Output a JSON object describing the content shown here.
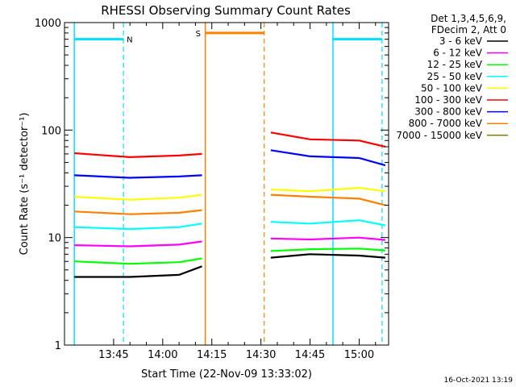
{
  "chart_data": {
    "type": "line",
    "title": "RHESSI Observing Summary Count Rates",
    "xlabel": "Start Time (22-Nov-09 13:33:02)",
    "ylabel": "Count Rate (s⁻¹ detector⁻¹)",
    "yscale": "log",
    "ylim": [
      1,
      1000
    ],
    "xlim_minutes": [
      13.5,
      15.15
    ],
    "x_ticks": [
      "13:45",
      "14:00",
      "14:15",
      "14:30",
      "14:45",
      "15:00"
    ],
    "y_ticks": [
      "1",
      "10",
      "100",
      "1000"
    ],
    "legend_header": [
      "Det 1,3,4,5,6,9,",
      "FDecim 2, Att 0"
    ],
    "legend_placement": "right",
    "timestamp": "16-Oct-2021 13:19",
    "series": [
      {
        "name": "3 - 6 keV",
        "color": "#000000",
        "seg1": {
          "x": [
            "13:33",
            "13:50",
            "14:05",
            "14:12"
          ],
          "y": [
            4.3,
            4.3,
            4.5,
            5.4
          ]
        },
        "seg2": {
          "x": [
            "14:33",
            "14:45",
            "15:00",
            "15:08"
          ],
          "y": [
            6.5,
            7.0,
            6.8,
            6.5
          ]
        }
      },
      {
        "name": "6 - 12 keV",
        "color": "#ff00ff",
        "seg1": {
          "x": [
            "13:33",
            "13:50",
            "14:05",
            "14:12"
          ],
          "y": [
            8.5,
            8.3,
            8.6,
            9.2
          ]
        },
        "seg2": {
          "x": [
            "14:33",
            "14:45",
            "15:00",
            "15:08"
          ],
          "y": [
            9.8,
            9.6,
            10.0,
            9.5
          ]
        }
      },
      {
        "name": "12 - 25 keV",
        "color": "#00ff00",
        "seg1": {
          "x": [
            "13:33",
            "13:50",
            "14:05",
            "14:12"
          ],
          "y": [
            6.0,
            5.7,
            5.9,
            6.4
          ]
        },
        "seg2": {
          "x": [
            "14:33",
            "14:45",
            "15:00",
            "15:08"
          ],
          "y": [
            7.5,
            7.8,
            7.9,
            7.6
          ]
        }
      },
      {
        "name": "25 - 50 keV",
        "color": "#00ffff",
        "seg1": {
          "x": [
            "13:33",
            "13:50",
            "14:05",
            "14:12"
          ],
          "y": [
            12.5,
            12.0,
            12.5,
            13.5
          ]
        },
        "seg2": {
          "x": [
            "14:33",
            "14:45",
            "15:00",
            "15:08"
          ],
          "y": [
            14.0,
            13.5,
            14.5,
            13.0
          ]
        }
      },
      {
        "name": "50 - 100 keV",
        "color": "#ffff00",
        "seg1": {
          "x": [
            "13:33",
            "13:50",
            "14:05",
            "14:12"
          ],
          "y": [
            24.0,
            22.5,
            23.5,
            25.0
          ]
        },
        "seg2": {
          "x": [
            "14:33",
            "14:45",
            "15:00",
            "15:08"
          ],
          "y": [
            28.0,
            27.0,
            29.0,
            27.0
          ]
        }
      },
      {
        "name": "100 - 300 keV",
        "color": "#ff0000",
        "seg1": {
          "x": [
            "13:33",
            "13:50",
            "14:05",
            "14:12"
          ],
          "y": [
            61.0,
            56.0,
            58.0,
            60.0
          ]
        },
        "seg2": {
          "x": [
            "14:33",
            "14:45",
            "15:00",
            "15:08"
          ],
          "y": [
            95.0,
            82.0,
            80.0,
            70.0
          ]
        }
      },
      {
        "name": "300 - 800 keV",
        "color": "#0000ff",
        "seg1": {
          "x": [
            "13:33",
            "13:50",
            "14:05",
            "14:12"
          ],
          "y": [
            38.0,
            36.0,
            37.0,
            38.0
          ]
        },
        "seg2": {
          "x": [
            "14:33",
            "14:45",
            "15:00",
            "15:08"
          ],
          "y": [
            65.0,
            57.0,
            55.0,
            47.0
          ]
        }
      },
      {
        "name": "800 - 7000 keV",
        "color": "#ff8000",
        "seg1": {
          "x": [
            "13:33",
            "13:50",
            "14:05",
            "14:12"
          ],
          "y": [
            17.5,
            16.5,
            17.0,
            18.0
          ]
        },
        "seg2": {
          "x": [
            "14:33",
            "14:45",
            "15:00",
            "15:08"
          ],
          "y": [
            25.0,
            24.0,
            23.0,
            20.0
          ]
        }
      },
      {
        "name": "7000 - 15000 keV",
        "color": "#808000",
        "seg1": {
          "x": [],
          "y": []
        },
        "seg2": {
          "x": [],
          "y": []
        }
      }
    ],
    "annotations": [
      {
        "label": "N",
        "color": "#00e0ff",
        "start": "13:33",
        "end": "13:48",
        "level": 700
      },
      {
        "label": "",
        "color": "#00e0ff",
        "start": "14:52",
        "end": "15:07",
        "level": 700
      },
      {
        "label": "S",
        "color": "#ff8000",
        "start": "14:13",
        "end": "14:31",
        "level": 800
      }
    ]
  }
}
